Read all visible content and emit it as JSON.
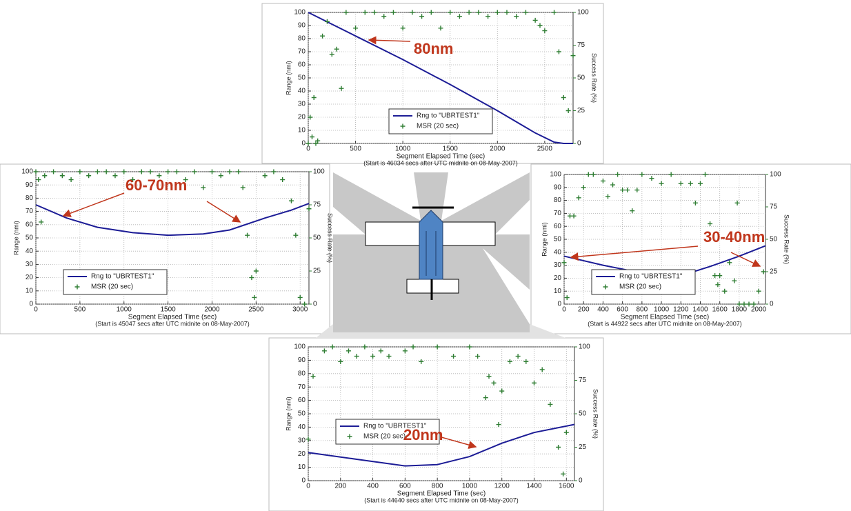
{
  "chart_data": [
    {
      "type": "line",
      "xlabel": "Segment Elapsed Time (sec)",
      "note": "(Start is 46034 secs after UTC midnite on 08-May-2007)",
      "ylabel": "Range (nmi)",
      "y2label": "Success Rate (%)",
      "annotation": "80nm",
      "legend": "lower center",
      "grid": true,
      "xlim": [
        0,
        2800
      ],
      "xticks": [
        0,
        500,
        1000,
        1500,
        2000,
        2500
      ],
      "ylim": [
        0,
        100
      ],
      "yticks": [
        0,
        10,
        20,
        30,
        40,
        50,
        60,
        70,
        80,
        90,
        100
      ],
      "y2lim": [
        0,
        100
      ],
      "y2ticks": [
        0,
        25,
        50,
        75,
        100
      ],
      "series": [
        {
          "name": "Rng to \"UBRTEST1\"",
          "color": "#1c1c96",
          "x": [
            0,
            500,
            1000,
            1500,
            2000,
            2400,
            2600,
            2700,
            2800
          ],
          "values": [
            100,
            82,
            64,
            45,
            25,
            8,
            1,
            0,
            0
          ]
        },
        {
          "name": "MSR (20 sec)",
          "color": "#2e7d32",
          "axis": "y2",
          "marker": "+",
          "linestyle": "none",
          "x": [
            0,
            20,
            40,
            60,
            80,
            100,
            150,
            200,
            250,
            300,
            350,
            400,
            500,
            600,
            700,
            800,
            900,
            1000,
            1100,
            1200,
            1300,
            1400,
            1500,
            1600,
            1700,
            1800,
            1900,
            2000,
            2100,
            2200,
            2300,
            2400,
            2450,
            2500,
            2600,
            2650,
            2700,
            2750,
            2800
          ],
          "values": [
            0,
            20,
            5,
            35,
            0,
            2,
            82,
            93,
            68,
            72,
            42,
            100,
            88,
            100,
            100,
            97,
            100,
            88,
            100,
            97,
            100,
            88,
            100,
            97,
            100,
            100,
            97,
            100,
            100,
            97,
            100,
            94,
            90,
            86,
            100,
            70,
            35,
            25,
            67
          ]
        }
      ]
    },
    {
      "type": "line",
      "xlabel": "Segment Elapsed Time (sec)",
      "note": "(Start is 45047 secs after UTC midnite on 08-May-2007)",
      "ylabel": "Range (nmi)",
      "y2label": "Success Rate (%)",
      "annotation": "60-70nm",
      "legend": "lower left",
      "grid": true,
      "xlim": [
        0,
        3100
      ],
      "xticks": [
        0,
        500,
        1000,
        1500,
        2000,
        2500,
        3000
      ],
      "ylim": [
        0,
        100
      ],
      "yticks": [
        0,
        10,
        20,
        30,
        40,
        50,
        60,
        70,
        80,
        90,
        100
      ],
      "y2lim": [
        0,
        100
      ],
      "y2ticks": [
        0,
        25,
        50,
        75,
        100
      ],
      "series": [
        {
          "name": "Rng to \"UBRTEST1\"",
          "color": "#1c1c96",
          "x": [
            0,
            350,
            700,
            1100,
            1500,
            1900,
            2200,
            2600,
            2900,
            3100
          ],
          "values": [
            75,
            65,
            58,
            54,
            52,
            53,
            56,
            65,
            71,
            76
          ]
        },
        {
          "name": "MSR (20 sec)",
          "color": "#2e7d32",
          "axis": "y2",
          "marker": "+",
          "linestyle": "none",
          "x": [
            0,
            30,
            60,
            100,
            200,
            300,
            400,
            500,
            600,
            700,
            800,
            900,
            1000,
            1100,
            1200,
            1300,
            1400,
            1500,
            1600,
            1700,
            1800,
            1900,
            2000,
            2100,
            2200,
            2300,
            2350,
            2400,
            2450,
            2480,
            2500,
            2600,
            2700,
            2800,
            2900,
            2950,
            3000,
            3050,
            3100
          ],
          "values": [
            100,
            94,
            62,
            97,
            100,
            97,
            94,
            100,
            97,
            100,
            100,
            97,
            100,
            94,
            100,
            100,
            97,
            100,
            100,
            94,
            100,
            88,
            100,
            97,
            100,
            100,
            88,
            52,
            20,
            5,
            25,
            97,
            100,
            94,
            78,
            52,
            5,
            0,
            72
          ]
        }
      ]
    },
    {
      "type": "line",
      "xlabel": "Segment Elapsed Time (sec)",
      "note": "(Start is 44922 secs after UTC midnite on 08-May-2007)",
      "ylabel": "Range (nmi)",
      "y2label": "Success Rate (%)",
      "annotation": "30-40nm",
      "legend": "lower left",
      "grid": true,
      "xlim": [
        0,
        2070
      ],
      "xticks": [
        0,
        200,
        400,
        600,
        800,
        1000,
        1200,
        1400,
        1600,
        1800,
        2000
      ],
      "ylim": [
        0,
        100
      ],
      "yticks": [
        0,
        10,
        20,
        30,
        40,
        50,
        60,
        70,
        80,
        90,
        100
      ],
      "y2lim": [
        0,
        100
      ],
      "y2ticks": [
        0,
        25,
        50,
        75,
        100
      ],
      "series": [
        {
          "name": "Rng to \"UBRTEST1\"",
          "color": "#1c1c96",
          "x": [
            0,
            400,
            800,
            1000,
            1200,
            1500,
            1800,
            2070
          ],
          "values": [
            37,
            30,
            24,
            20,
            22,
            29,
            37,
            45
          ]
        },
        {
          "name": "MSR (20 sec)",
          "color": "#2e7d32",
          "axis": "y2",
          "marker": "+",
          "linestyle": "none",
          "x": [
            0,
            30,
            60,
            100,
            150,
            200,
            250,
            300,
            400,
            450,
            500,
            550,
            600,
            650,
            700,
            750,
            800,
            900,
            1000,
            1100,
            1200,
            1300,
            1350,
            1400,
            1450,
            1500,
            1550,
            1580,
            1600,
            1650,
            1700,
            1750,
            1780,
            1800,
            1850,
            1900,
            1950,
            2000,
            2050
          ],
          "values": [
            32,
            5,
            68,
            68,
            82,
            90,
            100,
            100,
            95,
            83,
            92,
            100,
            88,
            88,
            72,
            88,
            100,
            97,
            93,
            100,
            93,
            93,
            78,
            93,
            100,
            62,
            22,
            15,
            22,
            10,
            32,
            18,
            78,
            0,
            0,
            0,
            0,
            10,
            25
          ]
        }
      ]
    },
    {
      "type": "line",
      "xlabel": "Segment Elapsed Time (sec)",
      "note": "(Start is 44640 secs after UTC midnite on 08-May-2007)",
      "ylabel": "Range (nmi)",
      "y2label": "Success Rate (%)",
      "annotation": "20nm",
      "legend": "center left",
      "grid": true,
      "xlim": [
        0,
        1650
      ],
      "xticks": [
        0,
        200,
        400,
        600,
        800,
        1000,
        1200,
        1400,
        1600
      ],
      "ylim": [
        0,
        100
      ],
      "yticks": [
        0,
        10,
        20,
        30,
        40,
        50,
        60,
        70,
        80,
        90,
        100
      ],
      "y2lim": [
        0,
        100
      ],
      "y2ticks": [
        0,
        25,
        50,
        75,
        100
      ],
      "series": [
        {
          "name": "Rng to \"UBRTEST1\"",
          "color": "#1c1c96",
          "x": [
            0,
            300,
            600,
            800,
            1000,
            1200,
            1400,
            1650
          ],
          "values": [
            21,
            16,
            11,
            12,
            18,
            28,
            36,
            42
          ]
        },
        {
          "name": "MSR (20 sec)",
          "color": "#2e7d32",
          "axis": "y2",
          "marker": "+",
          "linestyle": "none",
          "x": [
            0,
            30,
            100,
            150,
            200,
            250,
            300,
            350,
            400,
            450,
            500,
            600,
            650,
            700,
            800,
            900,
            1000,
            1050,
            1100,
            1120,
            1150,
            1180,
            1200,
            1250,
            1300,
            1350,
            1400,
            1450,
            1500,
            1550,
            1580,
            1600
          ],
          "values": [
            31,
            78,
            97,
            100,
            89,
            97,
            93,
            100,
            93,
            97,
            93,
            97,
            100,
            89,
            100,
            93,
            100,
            93,
            62,
            78,
            73,
            42,
            67,
            89,
            93,
            89,
            73,
            83,
            57,
            25,
            5,
            36
          ]
        }
      ]
    }
  ]
}
